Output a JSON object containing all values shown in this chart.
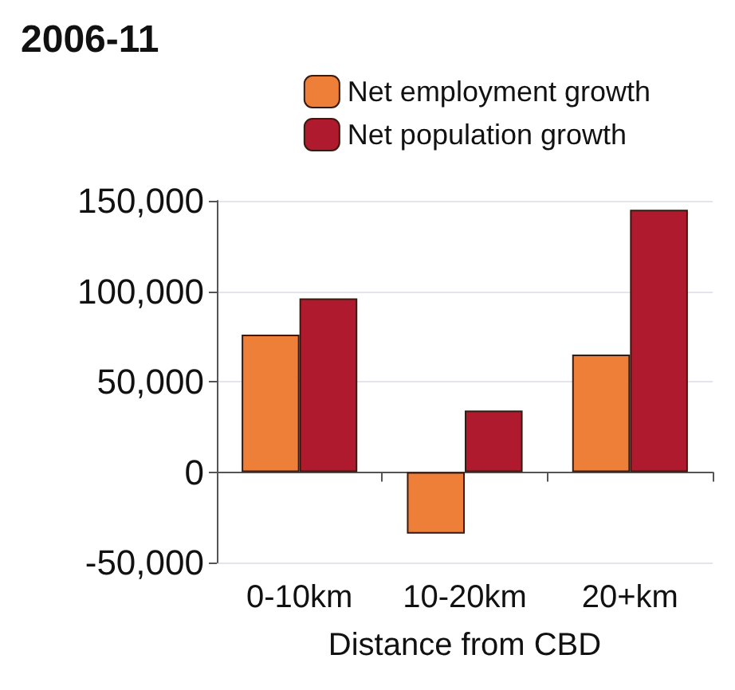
{
  "chart_data": {
    "type": "bar",
    "title": "2006-11",
    "xlabel": "Distance from CBD",
    "categories": [
      "0-10km",
      "10-20km",
      "20+km"
    ],
    "series": [
      {
        "name": "Net employment growth",
        "color": "#ee7f38",
        "values": [
          76000,
          -34000,
          65000
        ]
      },
      {
        "name": "Net population growth",
        "color": "#b01a2e",
        "values": [
          96000,
          34000,
          145000
        ]
      }
    ],
    "ylim": [
      -50000,
      150000
    ],
    "yticks": [
      {
        "value": -50000,
        "label": "-50,000"
      },
      0,
      {
        "value": 50000,
        "label": "50,000"
      },
      {
        "value": 100000,
        "label": "100,000"
      },
      {
        "value": 150000,
        "label": "150,000"
      }
    ],
    "grid": "y",
    "legend": "top right"
  }
}
